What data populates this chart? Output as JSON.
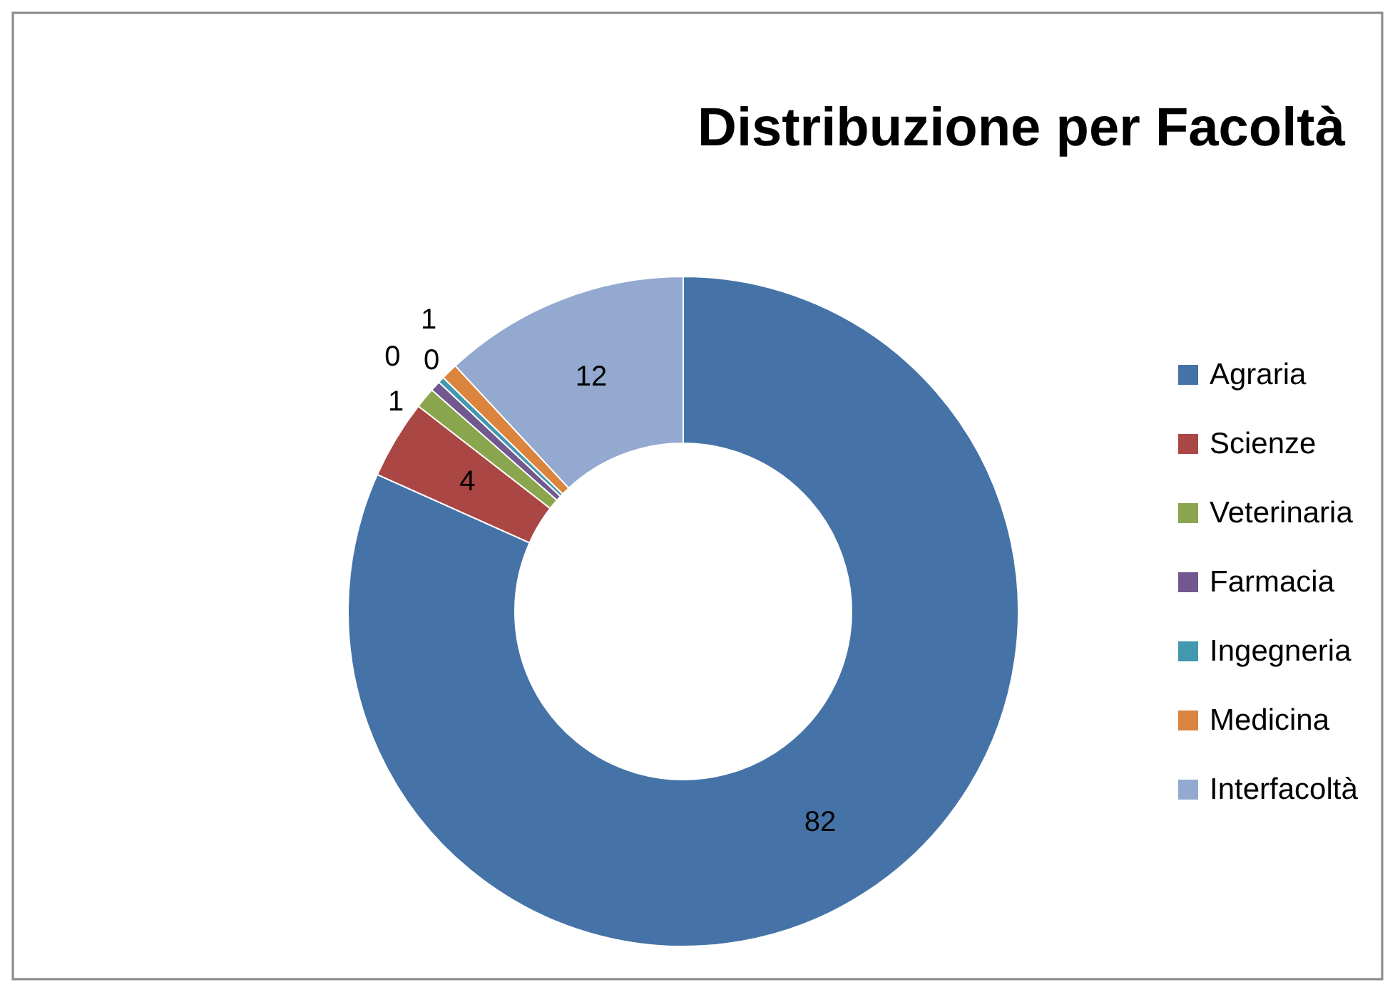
{
  "chart_data": {
    "type": "donut",
    "title": "Distribuzione per Facoltà",
    "categories": [
      "Agraria",
      "Scienze",
      "Veterinaria",
      "Farmacia",
      "Ingegneria",
      "Medicina",
      "Interfacoltà"
    ],
    "values": [
      81.7,
      3.8,
      1,
      0.5,
      0.3,
      0.8,
      11.9
    ],
    "value_labels": [
      "82",
      "4",
      "1",
      "0",
      "0",
      "1",
      "12"
    ],
    "colors": [
      "#4573a7",
      "#aa4644",
      "#89a54e",
      "#71588f",
      "#4298af",
      "#db843d",
      "#93a9cf"
    ],
    "legend": "right"
  }
}
